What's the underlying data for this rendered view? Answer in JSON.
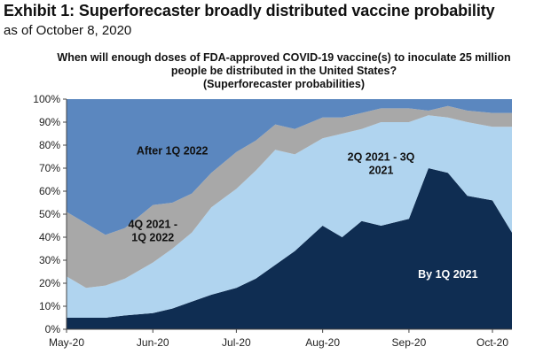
{
  "header": {
    "title": "Exhibit 1: Superforecaster broadly distributed vaccine probability",
    "subtitle": "as of October 8, 2020"
  },
  "chart_data": {
    "type": "area",
    "stacked": true,
    "title_lines": [
      "When will enough doses of FDA-approved COVID-19 vaccine(s) to inoculate 25 million",
      "people be distributed in the United States?",
      "(Superforecaster probabilities)"
    ],
    "x": [
      "2020-05-01",
      "2020-05-08",
      "2020-05-15",
      "2020-05-22",
      "2020-06-01",
      "2020-06-08",
      "2020-06-15",
      "2020-06-22",
      "2020-07-01",
      "2020-07-08",
      "2020-07-15",
      "2020-07-22",
      "2020-08-01",
      "2020-08-08",
      "2020-08-15",
      "2020-08-22",
      "2020-09-01",
      "2020-09-08",
      "2020-09-15",
      "2020-09-22",
      "2020-10-01",
      "2020-10-08"
    ],
    "x_tick_labels": [
      "May-20",
      "Jun-20",
      "Jul-20",
      "Aug-20",
      "Sep-20",
      "Oct-20"
    ],
    "ylim": [
      0,
      100
    ],
    "y_tick_labels": [
      "0%",
      "10%",
      "20%",
      "30%",
      "40%",
      "50%",
      "60%",
      "70%",
      "80%",
      "90%",
      "100%"
    ],
    "grid": false,
    "legend": "none",
    "series": [
      {
        "name": "By 1Q 2021",
        "color": "#0f2d52",
        "values": [
          5,
          5,
          5,
          6,
          7,
          9,
          12,
          15,
          18,
          22,
          28,
          34,
          45,
          40,
          47,
          45,
          48,
          70,
          68,
          58,
          56,
          42
        ]
      },
      {
        "name": "2Q 2021 - 3Q 2021",
        "color": "#b0d4ef",
        "values": [
          18,
          13,
          14,
          16,
          22,
          26,
          30,
          38,
          43,
          47,
          50,
          42,
          38,
          45,
          40,
          45,
          42,
          23,
          24,
          32,
          32,
          46
        ]
      },
      {
        "name": "4Q 2021 - 1Q 2022",
        "color": "#a8a8a8",
        "values": [
          28,
          28,
          22,
          22,
          25,
          20,
          17,
          15,
          16,
          13,
          11,
          11,
          9,
          7,
          7,
          6,
          6,
          2,
          5,
          5,
          6,
          6
        ]
      },
      {
        "name": "After 1Q 2022",
        "color": "#5b87bf",
        "values": [
          49,
          54,
          59,
          56,
          46,
          45,
          41,
          32,
          23,
          18,
          11,
          13,
          8,
          8,
          6,
          4,
          4,
          5,
          3,
          5,
          6,
          6
        ]
      }
    ],
    "annotations": [
      {
        "text": "After 1Q 2022",
        "lines": [
          "After 1Q 2022"
        ],
        "series": "After 1Q 2022",
        "color": "#111111"
      },
      {
        "text": "4Q 2021 - 1Q 2022",
        "lines": [
          "4Q 2021 -",
          "1Q 2022"
        ],
        "series": "4Q 2021 - 1Q 2022",
        "color": "#111111"
      },
      {
        "text": "2Q 2021 - 3Q 2021",
        "lines": [
          "2Q 2021 - 3Q",
          "2021"
        ],
        "series": "2Q 2021 - 3Q 2021",
        "color": "#111111"
      },
      {
        "text": "By 1Q 2021",
        "lines": [
          "By 1Q 2021"
        ],
        "series": "By 1Q 2021",
        "color": "#ffffff"
      }
    ]
  }
}
